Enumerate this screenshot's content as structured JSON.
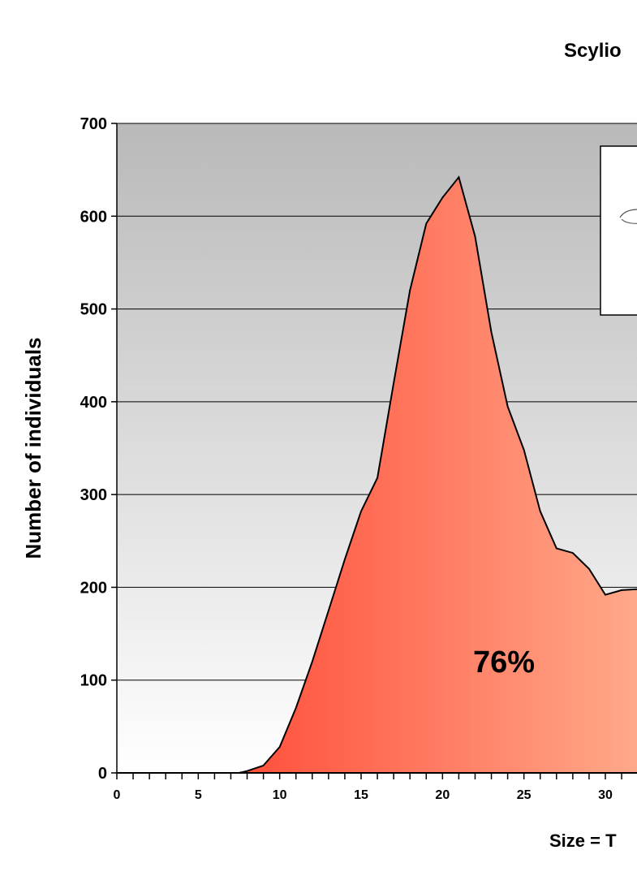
{
  "chart_data": {
    "type": "area",
    "title": "Scylio",
    "xlabel": "Size = T",
    "ylabel": "Number of individuals",
    "xlim": [
      0,
      32
    ],
    "ylim": [
      0,
      700
    ],
    "yticks": [
      0,
      100,
      200,
      300,
      400,
      500,
      600,
      700
    ],
    "xticks": [
      0,
      5,
      10,
      15,
      20,
      25,
      30
    ],
    "x_tick_labels": [
      "0",
      "5",
      "10",
      "15",
      "20",
      "25",
      "30"
    ],
    "y_tick_labels": [
      "0",
      "100",
      "200",
      "300",
      "400",
      "500",
      "600",
      "700"
    ],
    "grid": "horizontal",
    "annotation": "76%",
    "colors": {
      "plot_bg_top": "#b9b9b9",
      "plot_bg_bottom": "#ffffff",
      "fill_left": "#ff3322",
      "fill_right": "#ffa98a",
      "line": "#000000"
    },
    "series": [
      {
        "x": [
          0,
          1,
          2,
          3,
          4,
          5,
          6,
          7,
          7.5,
          8,
          9,
          10,
          11,
          12,
          13,
          14,
          15,
          16,
          17,
          18,
          19,
          20,
          21,
          22,
          23,
          24,
          25,
          26,
          27,
          28,
          29,
          30,
          31,
          32
        ],
        "values": [
          0,
          0,
          0,
          0,
          0,
          0,
          0,
          0,
          0,
          2,
          8,
          28,
          70,
          120,
          175,
          230,
          282,
          318,
          420,
          520,
          592,
          620,
          642,
          578,
          475,
          395,
          348,
          282,
          242,
          237,
          220,
          192,
          197,
          198
        ]
      }
    ]
  }
}
